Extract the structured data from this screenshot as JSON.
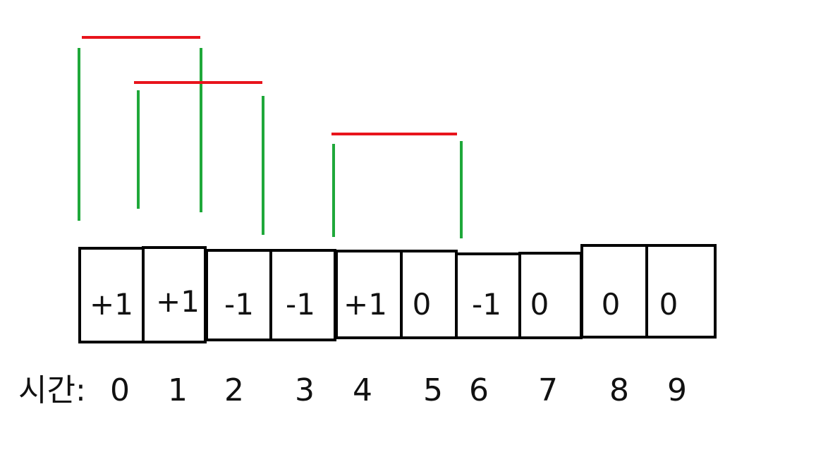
{
  "cells": [
    "+1",
    "+1",
    "-1",
    "-1",
    "+1",
    "0",
    "-1",
    "0",
    "0",
    "0"
  ],
  "time_label": "시간:",
  "time_ticks": [
    "0",
    "1",
    "2",
    "3",
    "4",
    "5",
    "6",
    "7",
    "8",
    "9"
  ],
  "colors": {
    "interval_bar": "#e8141c",
    "interval_leg": "#1fa83a",
    "cell_border": "#000000",
    "text": "#111111"
  }
}
